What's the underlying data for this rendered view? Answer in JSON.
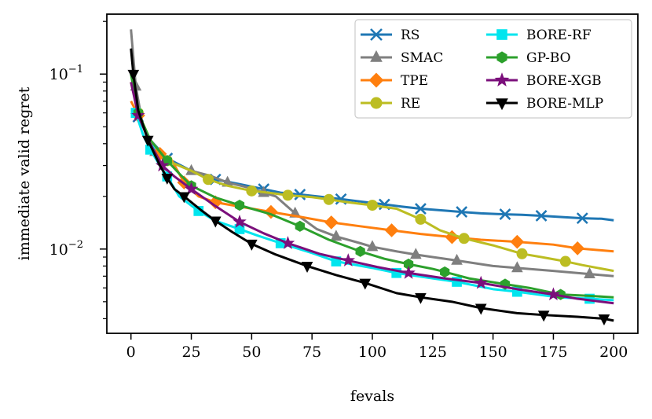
{
  "chart_data": {
    "type": "line",
    "xlabel": "fevals",
    "ylabel": "immediate valid regret",
    "xlim": [
      -10,
      210
    ],
    "ylim": [
      0.0033,
      0.22
    ],
    "yscale": "log",
    "legend_position": "top-right",
    "x_ticks": [
      {
        "value": 0,
        "label": "0"
      },
      {
        "value": 25,
        "label": "25"
      },
      {
        "value": 50,
        "label": "50"
      },
      {
        "value": 75,
        "label": "75"
      },
      {
        "value": 100,
        "label": "100"
      },
      {
        "value": 125,
        "label": "125"
      },
      {
        "value": 150,
        "label": "150"
      },
      {
        "value": 175,
        "label": "175"
      },
      {
        "value": 200,
        "label": "200"
      }
    ],
    "y_ticks": [
      {
        "value": 0.1,
        "base": "10",
        "exp": "−1"
      },
      {
        "value": 0.01,
        "base": "10",
        "exp": "−2"
      }
    ],
    "series": [
      {
        "name": "RS",
        "color": "#1f77b4",
        "marker": "x",
        "x": [
          0,
          3,
          8,
          15,
          25,
          35,
          45,
          55,
          62,
          70,
          80,
          87,
          95,
          105,
          112,
          120,
          130,
          137,
          145,
          155,
          162,
          170,
          180,
          187,
          195,
          200
        ],
        "y": [
          0.06,
          0.057,
          0.042,
          0.033,
          0.028,
          0.025,
          0.0235,
          0.022,
          0.021,
          0.0205,
          0.0198,
          0.0193,
          0.0187,
          0.018,
          0.0175,
          0.017,
          0.0166,
          0.0163,
          0.016,
          0.0158,
          0.0157,
          0.0155,
          0.0152,
          0.015,
          0.0149,
          0.0146
        ]
      },
      {
        "name": "SMAC",
        "color": "#7f7f7f",
        "marker": "triangle",
        "x": [
          0,
          2,
          5,
          10,
          15,
          25,
          33,
          40,
          50,
          55,
          60,
          68,
          77,
          85,
          95,
          100,
          110,
          118,
          125,
          135,
          150,
          160,
          175,
          190,
          200
        ],
        "y": [
          0.18,
          0.085,
          0.05,
          0.036,
          0.032,
          0.028,
          0.0262,
          0.024,
          0.0222,
          0.021,
          0.02,
          0.016,
          0.013,
          0.0118,
          0.0108,
          0.0103,
          0.0097,
          0.0093,
          0.009,
          0.0086,
          0.008,
          0.0078,
          0.0075,
          0.0072,
          0.007
        ]
      },
      {
        "name": "TPE",
        "color": "#ff7f0e",
        "marker": "diamond",
        "x": [
          0,
          3,
          8,
          12,
          17,
          22,
          28,
          35,
          45,
          58,
          70,
          83,
          95,
          108,
          120,
          133,
          145,
          160,
          175,
          185,
          200
        ],
        "y": [
          0.07,
          0.058,
          0.04,
          0.035,
          0.032,
          0.024,
          0.02,
          0.0185,
          0.0175,
          0.0163,
          0.0153,
          0.0142,
          0.0135,
          0.0128,
          0.0122,
          0.0117,
          0.0113,
          0.011,
          0.0106,
          0.0101,
          0.0097
        ]
      },
      {
        "name": "RE",
        "color": "#bcbd22",
        "marker": "circle",
        "x": [
          0,
          3,
          8,
          15,
          25,
          32,
          40,
          50,
          57,
          65,
          75,
          82,
          90,
          100,
          110,
          120,
          128,
          138,
          150,
          162,
          170,
          180,
          187,
          200
        ],
        "y": [
          0.09,
          0.06,
          0.042,
          0.032,
          0.028,
          0.025,
          0.023,
          0.0215,
          0.021,
          0.0203,
          0.0198,
          0.0192,
          0.0185,
          0.0178,
          0.017,
          0.0148,
          0.0128,
          0.0115,
          0.0105,
          0.0094,
          0.009,
          0.0085,
          0.0081,
          0.0075
        ]
      },
      {
        "name": "BORE-RF",
        "color": "#00e5ee",
        "marker": "square",
        "x": [
          0,
          2,
          5,
          8,
          12,
          15,
          20,
          28,
          35,
          45,
          52,
          62,
          75,
          85,
          100,
          110,
          125,
          135,
          150,
          160,
          177,
          190,
          200
        ],
        "y": [
          0.06,
          0.06,
          0.045,
          0.037,
          0.03,
          0.026,
          0.02,
          0.0165,
          0.0145,
          0.013,
          0.012,
          0.0108,
          0.0095,
          0.0085,
          0.0078,
          0.0073,
          0.0068,
          0.0065,
          0.0059,
          0.0057,
          0.0053,
          0.0052,
          0.0051
        ]
      },
      {
        "name": "GP-BO",
        "color": "#2ca02c",
        "marker": "hexagon",
        "x": [
          0,
          3,
          8,
          15,
          20,
          25,
          35,
          45,
          58,
          70,
          82,
          95,
          105,
          115,
          125,
          130,
          140,
          155,
          165,
          178,
          190,
          200
        ],
        "y": [
          0.1,
          0.06,
          0.042,
          0.032,
          0.027,
          0.023,
          0.0197,
          0.0178,
          0.0158,
          0.0135,
          0.0113,
          0.0097,
          0.0088,
          0.0082,
          0.0077,
          0.0074,
          0.0068,
          0.0063,
          0.006,
          0.0055,
          0.0054,
          0.0053
        ]
      },
      {
        "name": "BORE-XGB",
        "color": "#7b0f7b",
        "marker": "star",
        "x": [
          0,
          3,
          8,
          13,
          18,
          25,
          35,
          45,
          55,
          65,
          78,
          90,
          102,
          115,
          130,
          145,
          160,
          175,
          185,
          200
        ],
        "y": [
          0.09,
          0.058,
          0.04,
          0.03,
          0.026,
          0.022,
          0.0176,
          0.0143,
          0.0123,
          0.0108,
          0.0094,
          0.0086,
          0.0079,
          0.0073,
          0.0068,
          0.0064,
          0.0059,
          0.0055,
          0.0052,
          0.0049
        ]
      },
      {
        "name": "BORE-MLP",
        "color": "#000000",
        "marker": "triangle-down",
        "x": [
          0,
          1,
          3,
          7,
          12,
          15,
          18,
          22,
          29,
          35,
          42,
          50,
          60,
          73,
          85,
          97,
          110,
          120,
          133,
          145,
          160,
          171,
          185,
          196,
          200
        ],
        "y": [
          0.14,
          0.1,
          0.062,
          0.042,
          0.03,
          0.0255,
          0.022,
          0.02,
          0.0167,
          0.0145,
          0.0125,
          0.0107,
          0.0093,
          0.008,
          0.0071,
          0.0064,
          0.0056,
          0.0053,
          0.005,
          0.0046,
          0.0043,
          0.0042,
          0.0041,
          0.004,
          0.0039
        ]
      }
    ]
  }
}
